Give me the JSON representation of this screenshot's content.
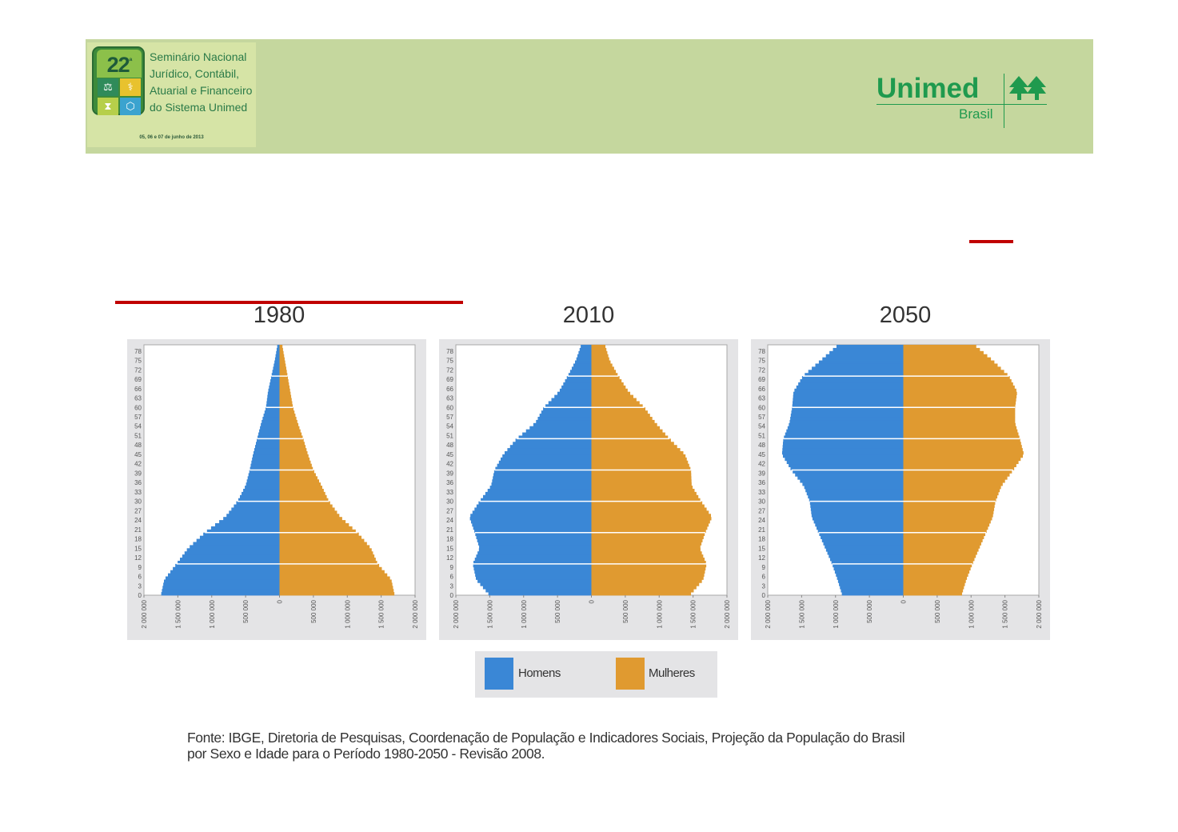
{
  "header": {
    "event": {
      "badge_number": "22",
      "badge_suffix": "ª",
      "title_lines": [
        "Seminário Nacional",
        "Jurídico, Contábil,",
        "Atuarial e Financeiro",
        "do Sistema Unimed"
      ],
      "date": "05, 06 e 07 de junho de 2013"
    },
    "brand": {
      "name": "Unimed",
      "subtitle": "Brasil",
      "color": "#1f9a4e"
    }
  },
  "legend": {
    "items": [
      {
        "label": "Homens",
        "color": "#3a87d6"
      },
      {
        "label": "Mulheres",
        "color": "#e09a30"
      }
    ]
  },
  "source_lines": [
    "Fonte: IBGE, Diretoria de Pesquisas, Coordenação de População e Indicadores Sociais, Projeção da População do Brasil",
    "por Sexo e Idade para o Período 1980-2050 - Revisão 2008."
  ],
  "chart_data": [
    {
      "type": "bar",
      "subtype": "population-pyramid",
      "title": "1980",
      "y_tick_labels": [
        "0",
        "3",
        "6",
        "9",
        "12",
        "15",
        "18",
        "21",
        "24",
        "27",
        "30",
        "33",
        "36",
        "39",
        "42",
        "45",
        "48",
        "51",
        "54",
        "57",
        "60",
        "63",
        "66",
        "69",
        "72",
        "75",
        "78"
      ],
      "x_tick_labels": [
        "2 000 000",
        "1 500 000",
        "1 000 000",
        "500 000",
        "0",
        "500 000",
        "1 000 000",
        "1 500 000",
        "2 000 000"
      ],
      "xlim": [
        -2000000,
        2000000
      ],
      "ylim": [
        0,
        80
      ],
      "ages": [
        0,
        5,
        10,
        15,
        20,
        25,
        30,
        35,
        40,
        45,
        50,
        55,
        60,
        65,
        70,
        75,
        80
      ],
      "series": [
        {
          "name": "Homens",
          "values": [
            1750000,
            1700000,
            1520000,
            1350000,
            1100000,
            800000,
            620000,
            500000,
            440000,
            390000,
            330000,
            270000,
            200000,
            170000,
            120000,
            70000,
            30000
          ]
        },
        {
          "name": "Mulheres",
          "values": [
            1700000,
            1650000,
            1450000,
            1350000,
            1150000,
            900000,
            730000,
            620000,
            500000,
            420000,
            350000,
            270000,
            200000,
            160000,
            120000,
            80000,
            40000
          ]
        }
      ]
    },
    {
      "type": "bar",
      "subtype": "population-pyramid",
      "title": "2010",
      "y_tick_labels": [
        "0",
        "3",
        "6",
        "9",
        "12",
        "15",
        "18",
        "21",
        "24",
        "27",
        "30",
        "33",
        "36",
        "39",
        "42",
        "45",
        "48",
        "51",
        "54",
        "57",
        "60",
        "63",
        "66",
        "69",
        "72",
        "75",
        "78"
      ],
      "x_tick_labels": [
        "2 000 000",
        "1 500 000",
        "1 000 000",
        "500 000",
        "0",
        "500 000",
        "1 000 000",
        "1 500 000",
        "2 000 000"
      ],
      "xlim": [
        -2000000,
        2000000
      ],
      "ylim": [
        0,
        80
      ],
      "ages": [
        0,
        5,
        10,
        15,
        20,
        25,
        30,
        35,
        40,
        45,
        50,
        55,
        60,
        65,
        70,
        75,
        80
      ],
      "series": [
        {
          "name": "Homens",
          "values": [
            1500000,
            1700000,
            1750000,
            1650000,
            1720000,
            1800000,
            1650000,
            1480000,
            1430000,
            1300000,
            1100000,
            830000,
            700000,
            480000,
            350000,
            230000,
            150000
          ]
        },
        {
          "name": "Mulheres",
          "values": [
            1450000,
            1650000,
            1700000,
            1600000,
            1680000,
            1780000,
            1620000,
            1480000,
            1470000,
            1380000,
            1150000,
            950000,
            780000,
            550000,
            400000,
            270000,
            200000
          ]
        }
      ]
    },
    {
      "type": "bar",
      "subtype": "population-pyramid",
      "title": "2050",
      "y_tick_labels": [
        "0",
        "3",
        "6",
        "9",
        "12",
        "15",
        "18",
        "21",
        "24",
        "27",
        "30",
        "33",
        "36",
        "39",
        "42",
        "45",
        "48",
        "51",
        "54",
        "57",
        "60",
        "63",
        "66",
        "69",
        "72",
        "75",
        "78"
      ],
      "x_tick_labels": [
        "2 000 000",
        "1 500 000",
        "1 000 000",
        "500 000",
        "0",
        "500 000",
        "1 000 000",
        "1 500 000",
        "2 000 000"
      ],
      "xlim": [
        -2000000,
        2000000
      ],
      "ylim": [
        0,
        80
      ],
      "ages": [
        0,
        5,
        10,
        15,
        20,
        25,
        30,
        35,
        40,
        45,
        50,
        55,
        60,
        65,
        70,
        75,
        80
      ],
      "series": [
        {
          "name": "Homens",
          "values": [
            900000,
            970000,
            1050000,
            1150000,
            1250000,
            1350000,
            1380000,
            1470000,
            1650000,
            1790000,
            1770000,
            1680000,
            1640000,
            1620000,
            1480000,
            1220000,
            960000
          ]
        },
        {
          "name": "Mulheres",
          "values": [
            860000,
            930000,
            1020000,
            1120000,
            1220000,
            1320000,
            1360000,
            1450000,
            1620000,
            1780000,
            1720000,
            1650000,
            1650000,
            1680000,
            1560000,
            1320000,
            1050000
          ]
        }
      ]
    }
  ]
}
